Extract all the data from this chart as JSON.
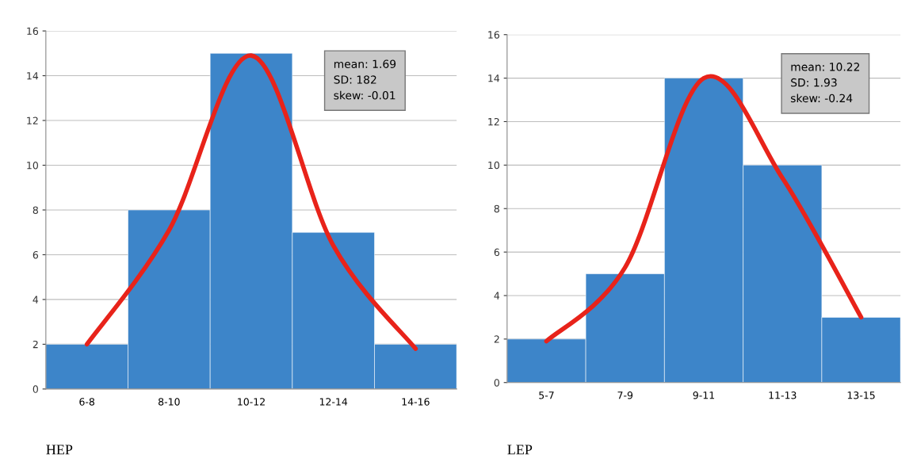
{
  "chart_data": [
    {
      "type": "bar",
      "categories": [
        "6-8",
        "8-10",
        "10-12",
        "12-14",
        "14-16"
      ],
      "values": [
        2,
        8,
        15,
        7,
        2
      ],
      "color": "#3d85c9",
      "ylim": [
        0,
        16
      ],
      "yticks": [
        0,
        2,
        4,
        6,
        8,
        10,
        12,
        14,
        16
      ],
      "grid": "y",
      "series": [
        {
          "type": "line",
          "color": "#e8231a",
          "values": [
            2.0,
            7.1,
            14.9,
            6.4,
            1.8
          ]
        }
      ],
      "annotations": [
        "mean: 1.69\nSD: 182\nskew: -0.01",
        "HEP"
      ]
    },
    {
      "type": "bar",
      "categories": [
        "5-7",
        "7-9",
        "9-11",
        "11-13",
        "13-15"
      ],
      "values": [
        2,
        5,
        14,
        10,
        3
      ],
      "color": "#3d85c9",
      "ylim": [
        0,
        16
      ],
      "yticks": [
        0,
        2,
        4,
        6,
        8,
        10,
        12,
        14,
        16
      ],
      "grid": "y",
      "series": [
        {
          "type": "line",
          "color": "#e8231a",
          "values": [
            1.9,
            5.3,
            14.0,
            9.4,
            3.0
          ]
        }
      ],
      "annotations": [
        "mean: 10.22\nSD: 1.93\nskew: -0.24",
        "LEP"
      ]
    }
  ]
}
